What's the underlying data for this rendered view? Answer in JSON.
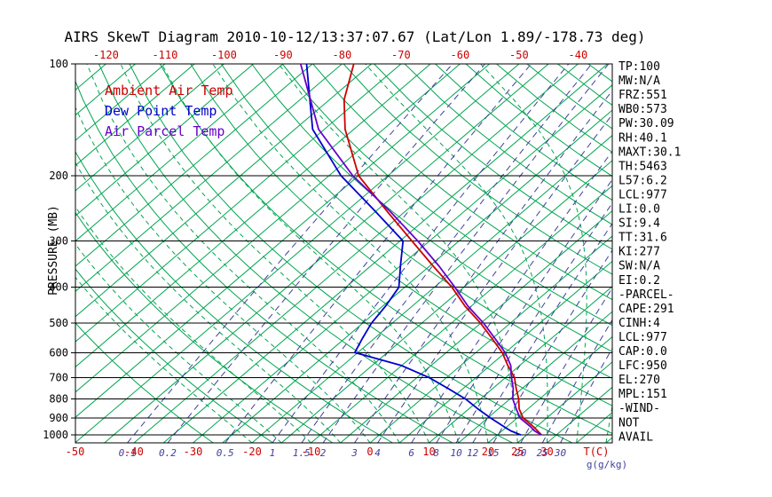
{
  "stats_panel": {
    "lines": [
      "TP:100",
      "MW:N/A",
      "FRZ:551",
      "WB0:573",
      "PW:30.09",
      "RH:40.1",
      "MAXT:30.1",
      "TH:5463",
      "L57:6.2",
      "LCL:977",
      "LI:0.0",
      "SI:9.4",
      "TT:31.6",
      "KI:277",
      "SW:N/A",
      "EI:0.2",
      "-PARCEL-",
      "CAPE:291",
      "CINH:4",
      "LCL:977",
      "CAP:0.0",
      "LFC:950",
      "EL:270",
      "MPL:151",
      "-WIND-",
      "NOT",
      "AVAIL"
    ]
  },
  "chart_data": {
    "type": "line",
    "subtype": "skew-t-log-p",
    "title": "AIRS SkewT Diagram 2010-10-12/13:37:07.67 (Lat/Lon 1.89/-178.73 deg)",
    "ylabel": "PRESSURE (MB)",
    "xlabel": "T(C)",
    "x2label": "g(g/kg)",
    "ylim": [
      1050,
      100
    ],
    "pressure_ticks": [
      100,
      200,
      300,
      400,
      500,
      600,
      700,
      800,
      900,
      1000
    ],
    "top_temp_ticks": [
      -120,
      -110,
      -100,
      -90,
      -80,
      -70,
      -60,
      -50,
      -40
    ],
    "bottom_temp_ticks": [
      -50,
      -40,
      -30,
      -20,
      -10,
      0,
      10,
      20,
      25,
      30
    ],
    "mixing_ratios": [
      0.1,
      0.2,
      0.5,
      1,
      1.5,
      2,
      3,
      4,
      6,
      8,
      10,
      12,
      15,
      20,
      25,
      30
    ],
    "isotherms": {
      "min": -120,
      "max": 45,
      "step": 5
    },
    "dry_adiabats": {
      "min": -30,
      "max": 180,
      "step": 10
    },
    "moist_adiabats": {
      "min": -20,
      "max": 40,
      "step": 5
    },
    "legend_position": "top-left-inside",
    "grid": true,
    "colors": {
      "background": "#ffffff",
      "axis": "#000000",
      "isotherm": "#00a550",
      "dry_adiabat": "#00a550",
      "moist_adiabat": "#00a550",
      "mixing_ratio": "#3f3f9f",
      "temp": "#cc0000",
      "dewpoint": "#0000cc",
      "parcel": "#6600cc",
      "tick_red": "#cc0000"
    },
    "series": [
      {
        "name": "Ambient Air Temp",
        "slug": "ambient-air-temp",
        "color_key": "temp",
        "units": [
          "mb",
          "degC"
        ],
        "points": [
          [
            1000,
            27.5
          ],
          [
            950,
            24.5
          ],
          [
            900,
            21
          ],
          [
            850,
            18.5
          ],
          [
            800,
            16.5
          ],
          [
            750,
            14
          ],
          [
            700,
            11.5
          ],
          [
            650,
            8
          ],
          [
            600,
            4.5
          ],
          [
            550,
            0
          ],
          [
            500,
            -5
          ],
          [
            450,
            -11
          ],
          [
            400,
            -17
          ],
          [
            350,
            -24.5
          ],
          [
            300,
            -33
          ],
          [
            250,
            -43
          ],
          [
            200,
            -55
          ],
          [
            150,
            -66.5
          ],
          [
            125,
            -72.5
          ],
          [
            100,
            -78
          ]
        ]
      },
      {
        "name": "Dew Point Temp",
        "slug": "dew-point-temp",
        "color_key": "dewpoint",
        "units": [
          "mb",
          "degC"
        ],
        "points": [
          [
            1000,
            24
          ],
          [
            975,
            21.5
          ],
          [
            950,
            19.5
          ],
          [
            900,
            15.5
          ],
          [
            850,
            11.5
          ],
          [
            800,
            7.5
          ],
          [
            750,
            2.5
          ],
          [
            700,
            -3
          ],
          [
            650,
            -10
          ],
          [
            600,
            -20.5
          ],
          [
            550,
            -22
          ],
          [
            500,
            -23.5
          ],
          [
            450,
            -24.5
          ],
          [
            400,
            -26
          ],
          [
            350,
            -30
          ],
          [
            300,
            -34.5
          ],
          [
            250,
            -45
          ],
          [
            200,
            -58
          ],
          [
            150,
            -72
          ],
          [
            100,
            -86
          ]
        ]
      },
      {
        "name": "Air Parcel Temp",
        "slug": "air-parcel-temp",
        "color_key": "parcel",
        "units": [
          "mb",
          "degC"
        ],
        "points": [
          [
            1000,
            27.5
          ],
          [
            975,
            25.5
          ],
          [
            950,
            24
          ],
          [
            900,
            20.5
          ],
          [
            850,
            18
          ],
          [
            800,
            15.5
          ],
          [
            750,
            13.5
          ],
          [
            700,
            11
          ],
          [
            650,
            8.5
          ],
          [
            600,
            5
          ],
          [
            550,
            0.5
          ],
          [
            500,
            -4.5
          ],
          [
            450,
            -10.5
          ],
          [
            400,
            -16.5
          ],
          [
            350,
            -23.5
          ],
          [
            300,
            -32
          ],
          [
            250,
            -42.5
          ],
          [
            200,
            -56
          ],
          [
            150,
            -71
          ],
          [
            100,
            -87
          ]
        ]
      }
    ]
  }
}
